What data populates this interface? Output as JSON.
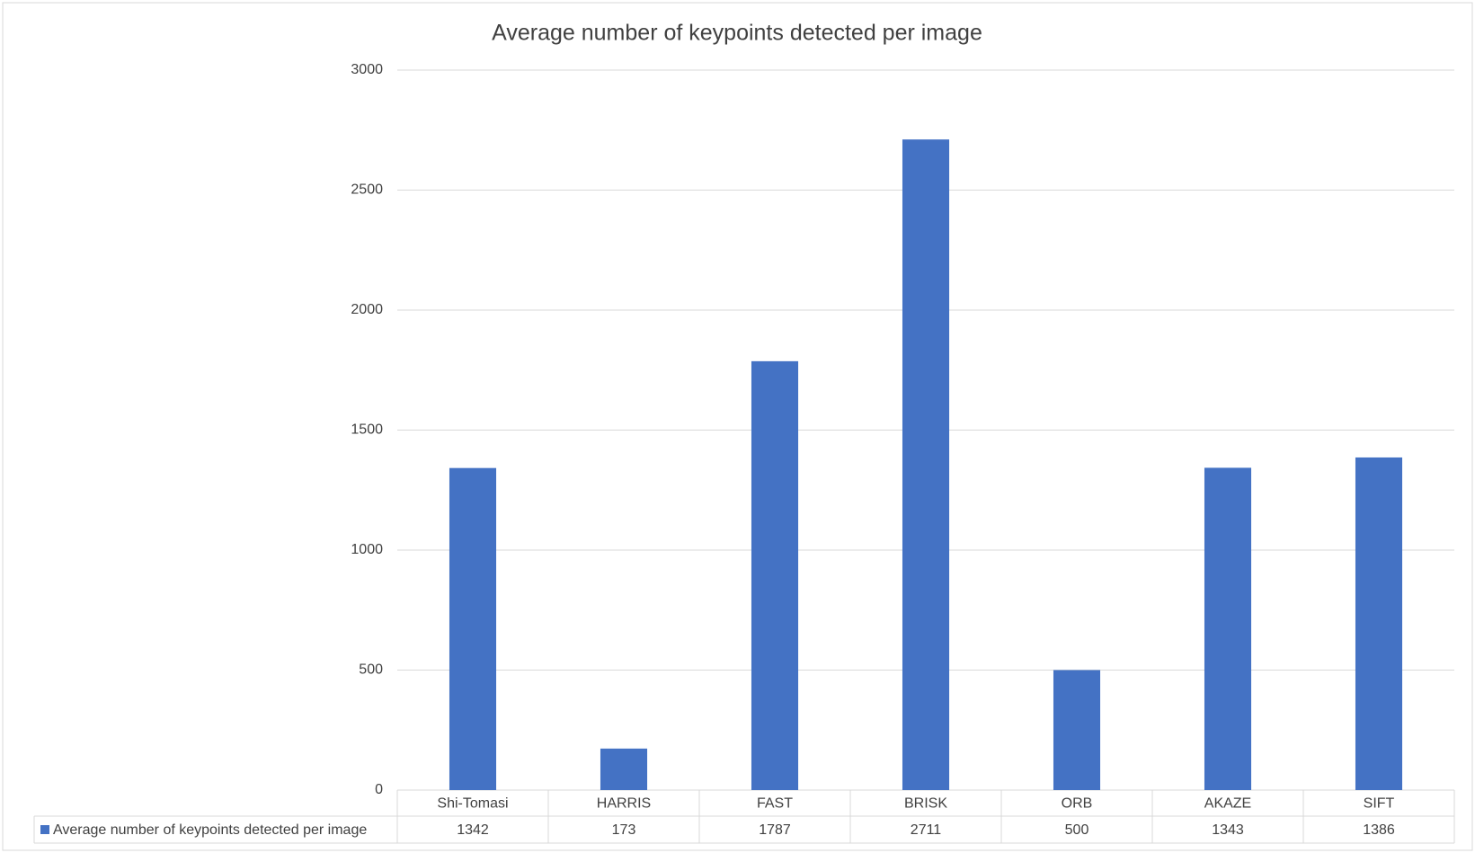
{
  "chart_data": {
    "type": "bar",
    "title": "Average number of keypoints detected per image",
    "categories": [
      "Shi-Tomasi",
      "HARRIS",
      "FAST",
      "BRISK",
      "ORB",
      "AKAZE",
      "SIFT"
    ],
    "series": [
      {
        "name": "Average number of keypoints detected per image",
        "color": "#4472c4",
        "values": [
          1342,
          173,
          1787,
          2711,
          500,
          1343,
          1386
        ]
      }
    ],
    "ylim": [
      0,
      3000
    ],
    "yticks": [
      0,
      500,
      1000,
      1500,
      2000,
      2500,
      3000
    ],
    "grid": true
  }
}
